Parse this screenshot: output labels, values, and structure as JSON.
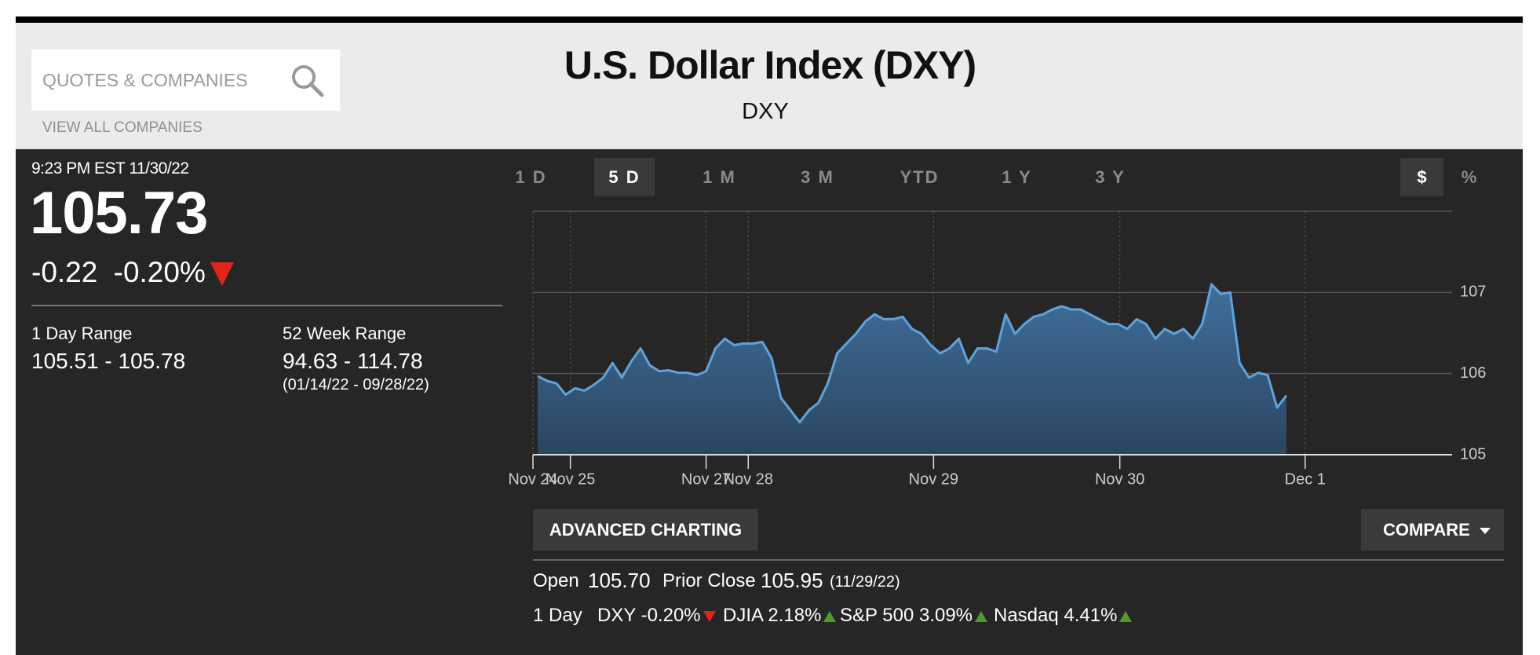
{
  "search": {
    "placeholder": "QUOTES & COMPANIES",
    "link": "VIEW ALL COMPANIES"
  },
  "header": {
    "title": "U.S. Dollar Index (DXY)",
    "symbol": "DXY"
  },
  "quote": {
    "timestamp": "9:23 PM EST 11/30/22",
    "price": "105.73",
    "change": "-0.22",
    "change_percent": "-0.20%",
    "direction": "down",
    "ranges": [
      {
        "label": "1 Day Range",
        "value": "105.51 - 105.78"
      },
      {
        "label": "52 Week Range",
        "value": "94.63 - 114.78",
        "dates": "(01/14/22 - 09/28/22)"
      }
    ]
  },
  "tabs": {
    "items": [
      "1 D",
      "5 D",
      "1 M",
      "3 M",
      "YTD",
      "1 Y",
      "3 Y"
    ],
    "active": 1
  },
  "units": {
    "items": [
      "$",
      "%"
    ],
    "active": 0
  },
  "chart_data": {
    "type": "area",
    "color": "#5ea3de",
    "fill_color": "#3f6f9c",
    "grid": true,
    "values": [
      105.97,
      105.91,
      105.88,
      105.74,
      105.82,
      105.79,
      105.86,
      105.95,
      106.13,
      105.95,
      106.15,
      106.31,
      106.1,
      106.03,
      106.04,
      106.01,
      106.01,
      105.98,
      106.03,
      106.31,
      106.43,
      106.35,
      106.37,
      106.37,
      106.39,
      106.19,
      105.7,
      105.55,
      105.4,
      105.55,
      105.64,
      105.88,
      106.25,
      106.37,
      106.49,
      106.64,
      106.73,
      106.67,
      106.67,
      106.7,
      106.55,
      106.49,
      106.35,
      106.25,
      106.31,
      106.43,
      106.13,
      106.31,
      106.31,
      106.27,
      106.73,
      106.49,
      106.61,
      106.7,
      106.73,
      106.79,
      106.83,
      106.79,
      106.79,
      106.73,
      106.67,
      106.61,
      106.61,
      106.55,
      106.67,
      106.61,
      106.43,
      106.55,
      106.49,
      106.55,
      106.43,
      106.61,
      107.1,
      106.98,
      107.0,
      106.13,
      105.95,
      106.01,
      105.98,
      105.58,
      105.73
    ],
    "xlim": [
      -0.5,
      97.7
    ],
    "xticks": [
      {
        "value": -0.5,
        "label": "Nov 24"
      },
      {
        "value": 3.5,
        "label": "Nov 25"
      },
      {
        "value": 18.0,
        "label": "Nov 27"
      },
      {
        "value": 22.5,
        "label": "Nov 28"
      },
      {
        "value": 42.3,
        "label": "Nov 29"
      },
      {
        "value": 62.2,
        "label": "Nov 30"
      },
      {
        "value": 82.0,
        "label": "Dec 1"
      }
    ],
    "ylim": [
      105,
      108
    ],
    "yticks": [
      105,
      106,
      107
    ]
  },
  "buttons": {
    "advanced": "ADVANCED CHARTING",
    "compare": "COMPARE"
  },
  "summary": {
    "open_label": "Open",
    "open": "105.70",
    "prior_close_label": "Prior Close",
    "prior_close": "105.95",
    "prior_close_date": "(11/29/22)",
    "period": "1 Day",
    "indices": [
      {
        "text": "DXY -0.20%",
        "direction": "down"
      },
      {
        "text": "DJIA 2.18%",
        "direction": "up"
      },
      {
        "text": "S&P 500 3.09%",
        "direction": "up"
      },
      {
        "text": "Nasdaq 4.41%",
        "direction": "up"
      }
    ]
  }
}
